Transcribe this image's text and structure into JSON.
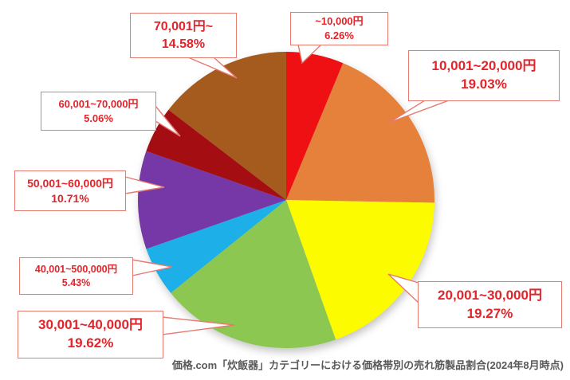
{
  "chart_data": {
    "type": "pie",
    "caption": "価格.com「炊飯器」カテゴリーにおける価格帯別の売れ筋製品割合(2024年8月時点)",
    "direction": "clockwise",
    "start_angle_deg": 0,
    "legend_position": "callout-labels-around-pie",
    "slices": [
      {
        "label": "~10,000円",
        "value": 6.26,
        "pct_label": "6.26%",
        "color": "#EE1013"
      },
      {
        "label": "10,001~20,000円",
        "value": 19.03,
        "pct_label": "19.03%",
        "color": "#E5813B"
      },
      {
        "label": "20,001~30,000円",
        "value": 19.27,
        "pct_label": "19.27%",
        "color": "#FDFB00"
      },
      {
        "label": "30,001~40,000円",
        "value": 19.62,
        "pct_label": "19.62%",
        "color": "#8CC751"
      },
      {
        "label": "40,001~500,000円",
        "value": 5.43,
        "pct_label": "5.43%",
        "color": "#1CAFE8"
      },
      {
        "label": "50,001~60,000円",
        "value": 10.71,
        "pct_label": "10.71%",
        "color": "#7538A6"
      },
      {
        "label": "60,001~70,000円",
        "value": 5.06,
        "pct_label": "5.06%",
        "color": "#A40E12"
      },
      {
        "label": "70,001円~",
        "value": 14.58,
        "pct_label": "14.58%",
        "color": "#A55A1E"
      }
    ],
    "colors": {
      "callout_border": "#E57A70",
      "callout_text": "#E2242B",
      "caption_text": "#595959",
      "background": "#FFFFFF"
    }
  }
}
